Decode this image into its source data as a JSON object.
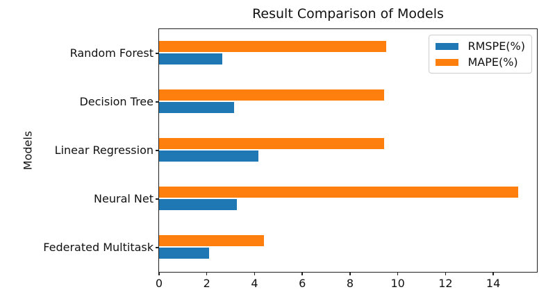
{
  "chart_data": {
    "type": "bar",
    "orientation": "horizontal",
    "title": "Result Comparison of Models",
    "xlabel": "",
    "ylabel": "Models",
    "categories": [
      "Random Forest",
      "Decision Tree",
      "Linear Regression",
      "Neural Net",
      "Federated Multitask"
    ],
    "series": [
      {
        "name": "RMSPE(%)",
        "color": "#1f77b4",
        "values": [
          2.64,
          3.13,
          4.15,
          3.25,
          2.1
        ]
      },
      {
        "name": "MAPE(%)",
        "color": "#ff7f0e",
        "values": [
          9.51,
          9.44,
          9.44,
          15.05,
          4.39
        ]
      }
    ],
    "xlim": [
      0,
      15.83
    ],
    "xticks": [
      0,
      2,
      4,
      6,
      8,
      10,
      12,
      14
    ],
    "legend": {
      "position": "upper right",
      "entries": [
        "RMSPE(%)",
        "MAPE(%)"
      ]
    },
    "grid": false,
    "background_color": "#ffffff"
  }
}
